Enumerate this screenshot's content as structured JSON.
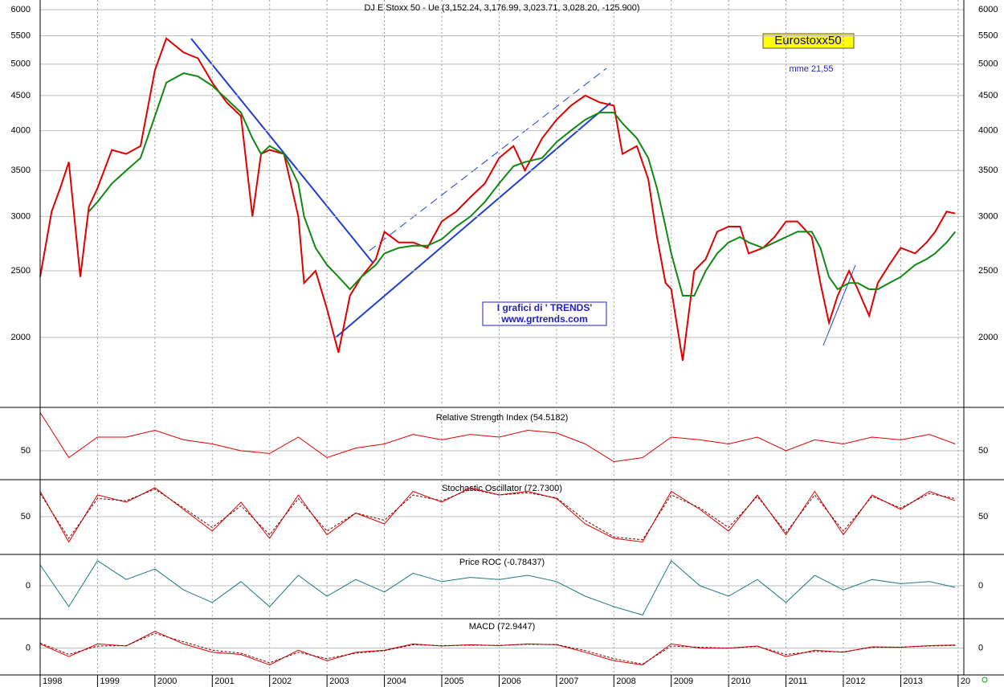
{
  "chart_data": [
    {
      "type": "line",
      "title": "DJ E Stoxx 50 - Ue (3,152.24, 3,176.99, 3,023.71, 3,028.20, -125.900)",
      "badge": "Eurostoxx50",
      "note": "mme 21,55",
      "credit": [
        "I grafici di  ' TRENDS'",
        "www.grtrends.com"
      ],
      "log_scale": true,
      "grid": true,
      "xlim": [
        1998,
        2014.1
      ],
      "xticks": [
        1998,
        1999,
        2000,
        2001,
        2002,
        2003,
        2004,
        2005,
        2006,
        2007,
        2008,
        2009,
        2010,
        2011,
        2012,
        2013,
        {
          "value": 2014,
          "label": "20"
        }
      ],
      "ylim": [
        1590,
        6200
      ],
      "yticks": [
        2000,
        2500,
        3000,
        3500,
        4000,
        4500,
        5000,
        5500,
        6000
      ],
      "x": [
        1998.0,
        1998.2,
        1998.35,
        1998.5,
        1998.7,
        1998.85,
        1999.0,
        1999.25,
        1999.5,
        1999.75,
        2000.0,
        2000.2,
        2000.5,
        2000.75,
        2001.0,
        2001.25,
        2001.5,
        2001.7,
        2001.85,
        2002.0,
        2002.25,
        2002.5,
        2002.6,
        2002.8,
        2003.0,
        2003.2,
        2003.4,
        2003.6,
        2003.85,
        2004.0,
        2004.25,
        2004.5,
        2004.75,
        2005.0,
        2005.25,
        2005.5,
        2005.75,
        2006.0,
        2006.25,
        2006.45,
        2006.75,
        2007.0,
        2007.25,
        2007.5,
        2007.75,
        2008.0,
        2008.15,
        2008.4,
        2008.6,
        2008.75,
        2008.9,
        2009.0,
        2009.2,
        2009.4,
        2009.6,
        2009.8,
        2010.0,
        2010.2,
        2010.35,
        2010.6,
        2010.8,
        2011.0,
        2011.2,
        2011.45,
        2011.6,
        2011.75,
        2011.9,
        2012.1,
        2012.25,
        2012.45,
        2012.6,
        2012.8,
        2013.0,
        2013.25,
        2013.45,
        2013.6,
        2013.8,
        2013.95
      ],
      "series": [
        {
          "color": "#e00000",
          "values": [
            2450,
            3050,
            3300,
            3600,
            2450,
            3100,
            3300,
            3750,
            3700,
            3800,
            4900,
            5450,
            5200,
            5100,
            4700,
            4400,
            4200,
            3000,
            3700,
            3750,
            3700,
            3000,
            2400,
            2500,
            2200,
            1900,
            2300,
            2450,
            2600,
            2850,
            2750,
            2750,
            2700,
            2950,
            3050,
            3200,
            3350,
            3650,
            3800,
            3500,
            3900,
            4150,
            4350,
            4500,
            4400,
            4350,
            3700,
            3800,
            3400,
            2800,
            2400,
            2350,
            1850,
            2500,
            2600,
            2850,
            2900,
            2900,
            2650,
            2700,
            2800,
            2950,
            2950,
            2800,
            2400,
            2100,
            2300,
            2500,
            2350,
            2150,
            2400,
            2550,
            2700,
            2650,
            2750,
            2850,
            3050,
            3030
          ]
        },
        {
          "color": "#118811",
          "values": [
            null,
            null,
            null,
            null,
            null,
            3050,
            3150,
            3350,
            3500,
            3650,
            4200,
            4700,
            4850,
            4800,
            4650,
            4450,
            4250,
            3900,
            3700,
            3800,
            3700,
            3350,
            3000,
            2700,
            2550,
            2450,
            2350,
            2450,
            2550,
            2650,
            2700,
            2720,
            2720,
            2780,
            2900,
            3000,
            3150,
            3350,
            3550,
            3600,
            3650,
            3850,
            4000,
            4150,
            4250,
            4250,
            4100,
            3900,
            3650,
            3300,
            2900,
            2650,
            2300,
            2300,
            2500,
            2650,
            2750,
            2800,
            2750,
            2700,
            2750,
            2800,
            2850,
            2850,
            2700,
            2450,
            2350,
            2400,
            2400,
            2350,
            2350,
            2400,
            2450,
            2550,
            2600,
            2650,
            2750,
            2850
          ]
        }
      ]
    },
    {
      "type": "line",
      "title": "Relative Strength Index (54.5182)",
      "xlim": [
        1998,
        2014.1
      ],
      "ylim": [
        30,
        80
      ],
      "yticks": [
        50
      ],
      "x": [
        1998,
        1998.5,
        1999,
        1999.5,
        2000,
        2000.5,
        2001,
        2001.5,
        2002,
        2002.5,
        2003,
        2003.5,
        2004,
        2004.5,
        2005,
        2005.5,
        2006,
        2006.5,
        2007,
        2007.5,
        2008,
        2008.5,
        2009,
        2009.5,
        2010,
        2010.5,
        2011,
        2011.5,
        2012,
        2012.5,
        2013,
        2013.5,
        2013.95
      ],
      "series": [
        {
          "color": "#e00000",
          "values": [
            78,
            45,
            60,
            60,
            65,
            58,
            55,
            50,
            48,
            60,
            45,
            52,
            55,
            62,
            58,
            62,
            60,
            65,
            63,
            55,
            42,
            45,
            60,
            58,
            55,
            60,
            50,
            58,
            55,
            60,
            58,
            62,
            55
          ]
        }
      ]
    },
    {
      "type": "line",
      "title": "Stochastic Oscillator (72.7300)",
      "xlim": [
        1998,
        2014.1
      ],
      "ylim": [
        0,
        100
      ],
      "yticks": [
        50
      ],
      "x": [
        1998,
        1998.5,
        1999,
        1999.5,
        2000,
        2000.5,
        2001,
        2001.5,
        2002,
        2002.5,
        2003,
        2003.5,
        2004,
        2004.5,
        2005,
        2005.5,
        2006,
        2006.5,
        2007,
        2007.5,
        2008,
        2008.5,
        2009,
        2009.5,
        2010,
        2010.5,
        2011,
        2011.5,
        2012,
        2012.5,
        2013,
        2013.5,
        2013.95
      ],
      "series": [
        {
          "color": "#e00000",
          "values": [
            85,
            15,
            80,
            70,
            90,
            60,
            30,
            70,
            20,
            80,
            25,
            55,
            40,
            85,
            70,
            90,
            80,
            85,
            75,
            40,
            20,
            15,
            85,
            60,
            30,
            80,
            25,
            85,
            25,
            80,
            60,
            85,
            72
          ]
        },
        {
          "color": "#7a0000",
          "dashed": true,
          "values": [
            82,
            20,
            75,
            72,
            88,
            62,
            35,
            65,
            25,
            75,
            30,
            55,
            45,
            80,
            72,
            88,
            80,
            83,
            76,
            45,
            22,
            18,
            80,
            62,
            35,
            78,
            28,
            80,
            30,
            78,
            62,
            82,
            75
          ]
        }
      ]
    },
    {
      "type": "line",
      "title": "Price ROC (-0.78437)",
      "xlim": [
        1998,
        2014.1
      ],
      "ylim": [
        -15,
        15
      ],
      "yticks": [
        0
      ],
      "x": [
        1998,
        1998.5,
        1999,
        1999.5,
        2000,
        2000.5,
        2001,
        2001.5,
        2002,
        2002.5,
        2003,
        2003.5,
        2004,
        2004.5,
        2005,
        2005.5,
        2006,
        2006.5,
        2007,
        2007.5,
        2008,
        2008.5,
        2009,
        2009.5,
        2010,
        2010.5,
        2011,
        2011.5,
        2012,
        2012.5,
        2013,
        2013.5,
        2013.95
      ],
      "series": [
        {
          "color": "#1a7a80",
          "values": [
            10,
            -10,
            12,
            3,
            8,
            -2,
            -8,
            2,
            -10,
            5,
            -5,
            3,
            -3,
            6,
            2,
            4,
            3,
            5,
            2,
            -5,
            -10,
            -14,
            12,
            0,
            -5,
            3,
            -8,
            5,
            -2,
            3,
            1,
            2,
            -0.78
          ]
        }
      ]
    },
    {
      "type": "line",
      "title": "MACD (72.9447)",
      "xlim": [
        1998,
        2014.1
      ],
      "ylim": [
        -600,
        700
      ],
      "yticks": [
        0
      ],
      "x": [
        1998,
        1998.5,
        1999,
        1999.5,
        2000,
        2000.5,
        2001,
        2001.5,
        2002,
        2002.5,
        2003,
        2003.5,
        2004,
        2004.5,
        2005,
        2005.5,
        2006,
        2006.5,
        2007,
        2007.5,
        2008,
        2008.5,
        2009,
        2009.5,
        2010,
        2010.5,
        2011,
        2011.5,
        2012,
        2012.5,
        2013,
        2013.5,
        2013.95
      ],
      "series": [
        {
          "color": "#e00000",
          "values": [
            100,
            -200,
            100,
            50,
            400,
            100,
            -100,
            -150,
            -400,
            -50,
            -300,
            -100,
            -50,
            100,
            50,
            80,
            60,
            100,
            80,
            -100,
            -300,
            -400,
            100,
            0,
            0,
            50,
            -200,
            -50,
            -100,
            30,
            20,
            60,
            73
          ]
        },
        {
          "color": "#7a0000",
          "dashed": true,
          "values": [
            120,
            -150,
            50,
            60,
            350,
            150,
            -50,
            -120,
            -350,
            -100,
            -250,
            -120,
            -60,
            80,
            60,
            70,
            65,
            90,
            85,
            -60,
            -250,
            -380,
            50,
            20,
            0,
            40,
            -150,
            -80,
            -90,
            20,
            25,
            50,
            65
          ]
        }
      ]
    }
  ]
}
